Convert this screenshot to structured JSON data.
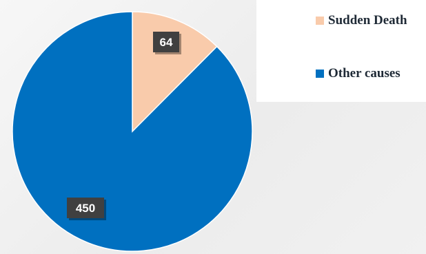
{
  "chart_data": {
    "type": "pie",
    "title": "",
    "categories": [
      "Sudden Death",
      "Other causes"
    ],
    "values": [
      64,
      450
    ],
    "colors": [
      "#f9cbab",
      "#0070c0"
    ],
    "data_labels": [
      "64",
      "450"
    ],
    "legend_position": "top-right",
    "legend": [
      "Sudden Death",
      "Other causes"
    ]
  },
  "label_box_color": "#404040",
  "label_text_color": "#ffffff"
}
